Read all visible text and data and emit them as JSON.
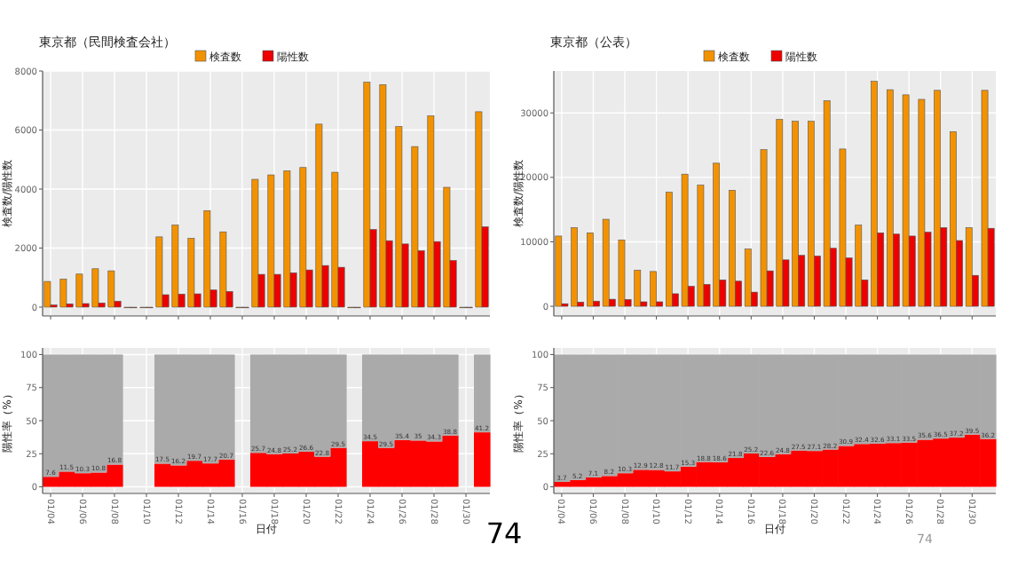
{
  "chart_data": [
    {
      "type": "bar",
      "title": "東京都（民間検査会社）",
      "ylabel": "検査数/陽性数",
      "categories": [
        null,
        null,
        null,
        null,
        null,
        null,
        null,
        null,
        null,
        null,
        null,
        null,
        null,
        null,
        null,
        null,
        null,
        null,
        null,
        null,
        null,
        null,
        null,
        null,
        null,
        null,
        null,
        null
      ],
      "ylim": [
        -300,
        8000
      ],
      "yticks": [
        0,
        2000,
        4000,
        6000,
        8000
      ],
      "grid": true,
      "legend": "top",
      "tick_labels": "y",
      "series": [
        {
          "name": "検査数",
          "color": "#f39200",
          "values": [
            870,
            950,
            1120,
            1300,
            1230,
            0,
            0,
            2380,
            2780,
            2330,
            3270,
            2550,
            0,
            4330,
            4480,
            4620,
            4730,
            6200,
            4570,
            0,
            7620,
            7540,
            6120,
            5440,
            6480,
            4060,
            0,
            6620
          ]
        },
        {
          "name": "陽性数",
          "color": "#ee0000",
          "values": [
            70,
            110,
            120,
            140,
            200,
            0,
            0,
            420,
            440,
            450,
            580,
            530,
            0,
            1110,
            1110,
            1160,
            1260,
            1410,
            1350,
            0,
            2630,
            2250,
            2140,
            1910,
            2220,
            1580,
            0,
            2720
          ]
        }
      ]
    },
    {
      "type": "bar",
      "title": "東京都（公表）",
      "ylabel": "検査数/陽性数",
      "categories": [
        null,
        null,
        null,
        null,
        null,
        null,
        null,
        null,
        null,
        null,
        null,
        null,
        null,
        null,
        null,
        null,
        null,
        null,
        null,
        null,
        null,
        null,
        null,
        null,
        null,
        null,
        null,
        null
      ],
      "ylim": [
        -1500,
        36500
      ],
      "yticks": [
        0,
        10000,
        20000,
        30000
      ],
      "grid": true,
      "legend": "top",
      "tick_labels": "y",
      "series": [
        {
          "name": "検査数",
          "color": "#f39200",
          "values": [
            10900,
            12200,
            11400,
            13500,
            10300,
            5600,
            5400,
            17700,
            20500,
            18800,
            22200,
            18000,
            8900,
            24300,
            29000,
            28700,
            28700,
            31900,
            24400,
            12600,
            34900,
            33600,
            32800,
            32100,
            33500,
            27100,
            12200,
            33500
          ]
        },
        {
          "name": "陽性数",
          "color": "#ee0000",
          "values": [
            400,
            650,
            800,
            1100,
            1050,
            700,
            700,
            1950,
            3100,
            3400,
            4100,
            3900,
            2200,
            5500,
            7200,
            7900,
            7800,
            9000,
            7500,
            4100,
            11400,
            11200,
            10900,
            11500,
            12200,
            10200,
            4800,
            12100
          ]
        }
      ]
    },
    {
      "type": "bar",
      "stacked": true,
      "xlabel": "日付",
      "ylabel": "陽性率（%）",
      "categories": [
        "01/04",
        null,
        "01/06",
        null,
        "01/08",
        null,
        "01/10",
        null,
        "01/12",
        null,
        "01/14",
        null,
        "01/16",
        null,
        "01/18",
        null,
        "01/20",
        null,
        "01/22",
        null,
        "01/24",
        null,
        "01/26",
        null,
        "01/28",
        null,
        "01/30",
        null
      ],
      "ylim": [
        -5,
        105
      ],
      "yticks": [
        0,
        25,
        50,
        75,
        100
      ],
      "grid": true,
      "annotations": [
        "74"
      ],
      "series": [
        {
          "color": "#ff0000",
          "values": [
            7.6,
            11.5,
            10.3,
            10.8,
            16.8,
            null,
            null,
            17.5,
            16.2,
            19.7,
            17.7,
            20.7,
            null,
            25.7,
            24.8,
            25.2,
            26.6,
            22.8,
            29.5,
            null,
            34.5,
            29.5,
            35.4,
            35,
            34.3,
            38.8,
            null,
            41.2
          ],
          "value_labels": [
            "7.6",
            "11.5",
            "10.3",
            "10.8",
            "16.8",
            null,
            null,
            "17.5",
            "16.2",
            "19.7",
            "17.7",
            "20.7",
            null,
            "25.7",
            "24.8",
            "25.2",
            "26.6",
            "22.8",
            "29.5",
            null,
            "34.5",
            "29.5",
            "35.4",
            "35",
            "34.3",
            "38.8",
            null,
            "41.2"
          ]
        },
        {
          "color": "#aaaaaa",
          "values": [
            92.4,
            88.5,
            89.7,
            89.2,
            83.2,
            null,
            null,
            82.5,
            83.8,
            80.3,
            82.3,
            79.3,
            null,
            74.3,
            75.2,
            74.8,
            73.4,
            77.2,
            70.5,
            null,
            65.5,
            70.5,
            64.6,
            65,
            65.7,
            61.2,
            null,
            58.8
          ]
        }
      ]
    },
    {
      "type": "bar",
      "stacked": true,
      "xlabel": "日付",
      "ylabel": "陽性率（%）",
      "categories": [
        "01/04",
        null,
        "01/06",
        null,
        "01/08",
        null,
        "01/10",
        null,
        "01/12",
        null,
        "01/14",
        null,
        "01/16",
        null,
        "01/18",
        null,
        "01/20",
        null,
        "01/22",
        null,
        "01/24",
        null,
        "01/26",
        null,
        "01/28",
        null,
        "01/30",
        null
      ],
      "ylim": [
        -5,
        105
      ],
      "yticks": [
        0,
        25,
        50,
        75,
        100
      ],
      "grid": true,
      "annotations": [
        "74"
      ],
      "series": [
        {
          "color": "#ff0000",
          "values": [
            3.7,
            5.2,
            7.1,
            8.2,
            10.3,
            12.9,
            12.8,
            11.7,
            15.3,
            18.8,
            18.6,
            21.8,
            25.2,
            22.6,
            24.8,
            27.5,
            27.1,
            28.2,
            30.9,
            32.4,
            32.6,
            33.1,
            33.5,
            35.6,
            36.5,
            37.2,
            39.5,
            36.2
          ],
          "value_labels": [
            "3.7",
            "5.2",
            "7.1",
            "8.2",
            "10.3",
            "12.9",
            "12.8",
            "11.7",
            "15.3",
            "18.8",
            "18.6",
            "21.8",
            "25.2",
            "22.6",
            "24.8",
            "27.5",
            "27.1",
            "28.2",
            "30.9",
            "32.4",
            "32.6",
            "33.1",
            "33.5",
            "35.6",
            "36.5",
            "37.2",
            "39.5",
            "36.2"
          ]
        },
        {
          "color": "#aaaaaa",
          "values": [
            96.3,
            94.8,
            92.9,
            91.8,
            89.7,
            87.1,
            87.2,
            88.3,
            84.7,
            81.2,
            81.4,
            78.2,
            74.8,
            77.4,
            75.2,
            72.5,
            72.9,
            71.8,
            69.1,
            67.6,
            67.4,
            66.9,
            66.5,
            64.4,
            63.5,
            62.8,
            60.5,
            63.8
          ]
        }
      ]
    }
  ]
}
